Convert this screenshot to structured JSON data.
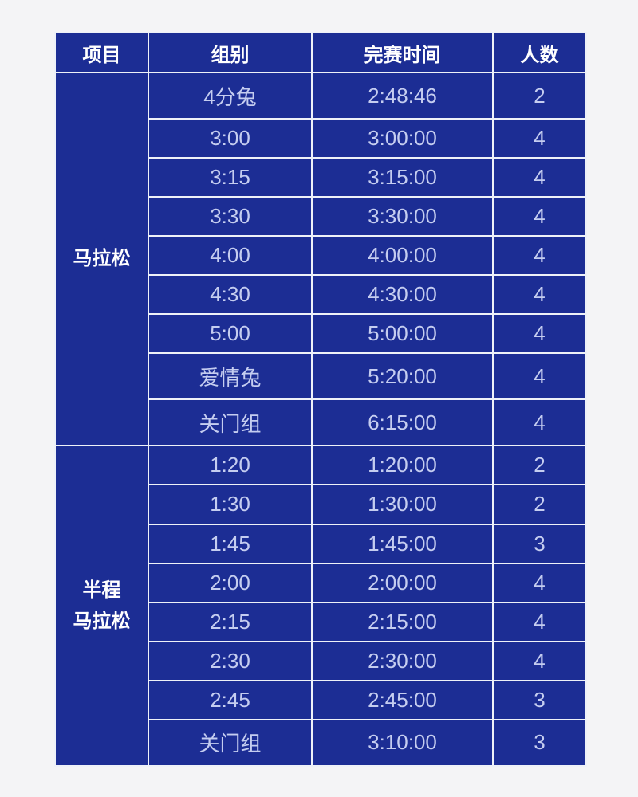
{
  "page": {
    "background_color": "#f4f4f6"
  },
  "table": {
    "cell_blue": "#1c2d94",
    "border_color": "#eef1f8",
    "header_text_color": "#ffffff",
    "body_text_color": "#c5cdf0",
    "headers": [
      "项目",
      "组别",
      "完赛时间",
      "人数"
    ],
    "sections": [
      {
        "event": "马拉松",
        "event_lines": [
          "马拉松"
        ],
        "rows": [
          {
            "group": "4分兔",
            "finish_time": "2:48:46",
            "count": "2"
          },
          {
            "group": "3:00",
            "finish_time": "3:00:00",
            "count": "4"
          },
          {
            "group": "3:15",
            "finish_time": "3:15:00",
            "count": "4"
          },
          {
            "group": "3:30",
            "finish_time": "3:30:00",
            "count": "4"
          },
          {
            "group": "4:00",
            "finish_time": "4:00:00",
            "count": "4"
          },
          {
            "group": "4:30",
            "finish_time": "4:30:00",
            "count": "4"
          },
          {
            "group": "5:00",
            "finish_time": "5:00:00",
            "count": "4"
          },
          {
            "group": "爱情兔",
            "finish_time": "5:20:00",
            "count": "4"
          },
          {
            "group": "关门组",
            "finish_time": "6:15:00",
            "count": "4"
          }
        ]
      },
      {
        "event": "半程马拉松",
        "event_lines": [
          "半程",
          "马拉松"
        ],
        "rows": [
          {
            "group": "1:20",
            "finish_time": "1:20:00",
            "count": "2"
          },
          {
            "group": "1:30",
            "finish_time": "1:30:00",
            "count": "2"
          },
          {
            "group": "1:45",
            "finish_time": "1:45:00",
            "count": "3"
          },
          {
            "group": "2:00",
            "finish_time": "2:00:00",
            "count": "4"
          },
          {
            "group": "2:15",
            "finish_time": "2:15:00",
            "count": "4"
          },
          {
            "group": "2:30",
            "finish_time": "2:30:00",
            "count": "4"
          },
          {
            "group": "2:45",
            "finish_time": "2:45:00",
            "count": "3"
          },
          {
            "group": "关门组",
            "finish_time": "3:10:00",
            "count": "3"
          }
        ]
      }
    ]
  },
  "chart_data": {
    "type": "table",
    "title": "",
    "columns": [
      "项目",
      "组别",
      "完赛时间",
      "人数"
    ],
    "rows": [
      [
        "马拉松",
        "4分兔",
        "2:48:46",
        2
      ],
      [
        "马拉松",
        "3:00",
        "3:00:00",
        4
      ],
      [
        "马拉松",
        "3:15",
        "3:15:00",
        4
      ],
      [
        "马拉松",
        "3:30",
        "3:30:00",
        4
      ],
      [
        "马拉松",
        "4:00",
        "4:00:00",
        4
      ],
      [
        "马拉松",
        "4:30",
        "4:30:00",
        4
      ],
      [
        "马拉松",
        "5:00",
        "5:00:00",
        4
      ],
      [
        "马拉松",
        "爱情兔",
        "5:20:00",
        4
      ],
      [
        "马拉松",
        "关门组",
        "6:15:00",
        4
      ],
      [
        "半程马拉松",
        "1:20",
        "1:20:00",
        2
      ],
      [
        "半程马拉松",
        "1:30",
        "1:30:00",
        2
      ],
      [
        "半程马拉松",
        "1:45",
        "1:45:00",
        3
      ],
      [
        "半程马拉松",
        "2:00",
        "2:00:00",
        4
      ],
      [
        "半程马拉松",
        "2:15",
        "2:15:00",
        4
      ],
      [
        "半程马拉松",
        "2:30",
        "2:30:00",
        4
      ],
      [
        "半程马拉松",
        "2:45",
        "2:45:00",
        3
      ],
      [
        "半程马拉松",
        "关门组",
        "3:10:00",
        3
      ]
    ]
  }
}
